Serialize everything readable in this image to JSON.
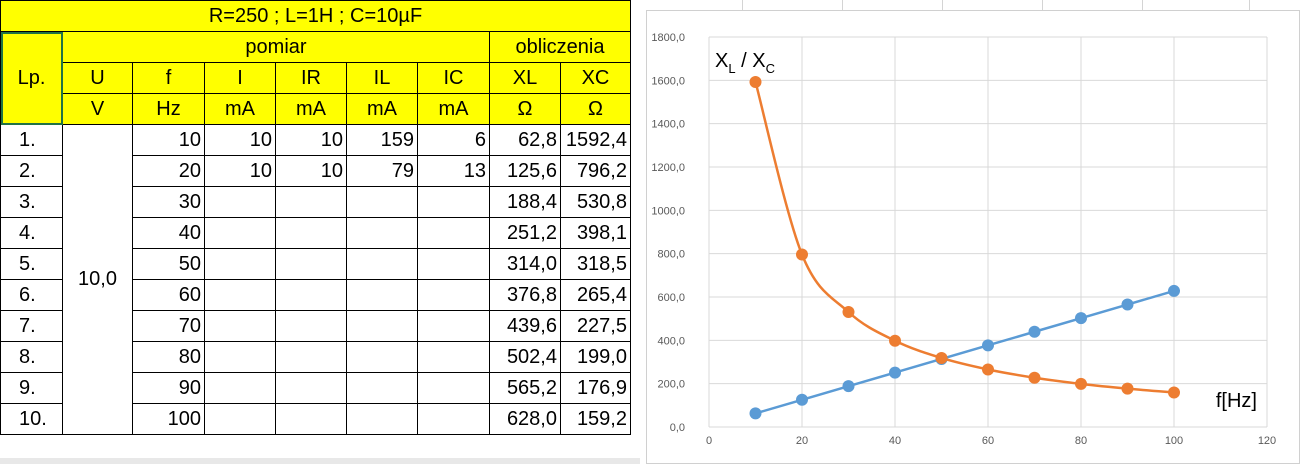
{
  "sheet": {
    "title": "R=250 ; L=1H ; C=10µF",
    "lp_header": "Lp.",
    "group_measure": "pomiar",
    "group_calc": "obliczenia",
    "columns": [
      "U",
      "f",
      "I",
      "IR",
      "IL",
      "IC",
      "XL",
      "XC"
    ],
    "units": [
      "V",
      "Hz",
      "mA",
      "mA",
      "mA",
      "mA",
      "Ω",
      "Ω"
    ],
    "u_value": "10,0",
    "rows": [
      {
        "lp": "1.",
        "f": "10",
        "i": "10",
        "ir": "10",
        "il": "159",
        "ic": "6",
        "xl": "62,8",
        "xc": "1592,4"
      },
      {
        "lp": "2.",
        "f": "20",
        "i": "10",
        "ir": "10",
        "il": "79",
        "ic": "13",
        "xl": "125,6",
        "xc": "796,2"
      },
      {
        "lp": "3.",
        "f": "30",
        "i": "",
        "ir": "",
        "il": "",
        "ic": "",
        "xl": "188,4",
        "xc": "530,8"
      },
      {
        "lp": "4.",
        "f": "40",
        "i": "",
        "ir": "",
        "il": "",
        "ic": "",
        "xl": "251,2",
        "xc": "398,1"
      },
      {
        "lp": "5.",
        "f": "50",
        "i": "",
        "ir": "",
        "il": "",
        "ic": "",
        "xl": "314,0",
        "xc": "318,5"
      },
      {
        "lp": "6.",
        "f": "60",
        "i": "",
        "ir": "",
        "il": "",
        "ic": "",
        "xl": "376,8",
        "xc": "265,4"
      },
      {
        "lp": "7.",
        "f": "70",
        "i": "",
        "ir": "",
        "il": "",
        "ic": "",
        "xl": "439,6",
        "xc": "227,5"
      },
      {
        "lp": "8.",
        "f": "80",
        "i": "",
        "ir": "",
        "il": "",
        "ic": "",
        "xl": "502,4",
        "xc": "199,0"
      },
      {
        "lp": "9.",
        "f": "90",
        "i": "",
        "ir": "",
        "il": "",
        "ic": "",
        "xl": "565,2",
        "xc": "176,9"
      },
      {
        "lp": "10.",
        "f": "100",
        "i": "",
        "ir": "",
        "il": "",
        "ic": "",
        "xl": "628,0",
        "xc": "159,2"
      }
    ]
  },
  "chart_data": {
    "type": "scatter",
    "x": [
      10,
      20,
      30,
      40,
      50,
      60,
      70,
      80,
      90,
      100
    ],
    "series": [
      {
        "values": [
          62.8,
          125.6,
          188.4,
          251.2,
          314.0,
          376.8,
          439.6,
          502.4,
          565.2,
          628.0
        ],
        "color": "#5b9bd5",
        "smooth": false
      },
      {
        "values": [
          1592.4,
          796.2,
          530.8,
          398.1,
          318.5,
          265.4,
          227.5,
          199.0,
          176.9,
          159.2
        ],
        "color": "#ed7d31",
        "smooth": true
      }
    ],
    "xlim": [
      0,
      120
    ],
    "ylim": [
      0,
      1800
    ],
    "x_ticks": [
      0,
      20,
      40,
      60,
      80,
      100,
      120
    ],
    "x_tick_labels": [
      "0",
      "20",
      "40",
      "60",
      "80",
      "100",
      "120"
    ],
    "y_ticks": [
      0,
      200,
      400,
      600,
      800,
      1000,
      1200,
      1400,
      1600,
      1800
    ],
    "y_tick_labels": [
      "0,0",
      "200,0",
      "400,0",
      "600,0",
      "800,0",
      "1000,0",
      "1200,0",
      "1400,0",
      "1600,0",
      "1800,0"
    ],
    "grid": true,
    "ylabel_main1": "X",
    "ylabel_sub1": "L",
    "ylabel_sep": " / X",
    "ylabel_sub2": "C",
    "xlabel": "f[Hz]"
  }
}
